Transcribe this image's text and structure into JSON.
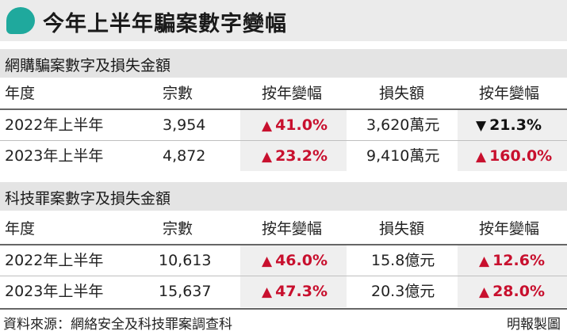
{
  "title": "今年上半年騙案數字變幅",
  "colors": {
    "accent": "#1fa99d",
    "up": "#c8102e",
    "down": "#111111"
  },
  "headers": {
    "year": "年度",
    "cases": "宗數",
    "yoy": "按年變幅",
    "loss": "損失額",
    "loss_yoy": "按年變幅"
  },
  "sections": [
    {
      "title": "網購騙案數字及損失金額",
      "rows": [
        {
          "year": "2022年上半年",
          "cases": "3,954",
          "cases_yoy": "41.0%",
          "cases_dir": "up",
          "loss": "3,620萬元",
          "loss_yoy": "21.3%",
          "loss_dir": "down"
        },
        {
          "year": "2023年上半年",
          "cases": "4,872",
          "cases_yoy": "23.2%",
          "cases_dir": "up",
          "loss": "9,410萬元",
          "loss_yoy": "160.0%",
          "loss_dir": "up"
        }
      ]
    },
    {
      "title": "科技罪案數字及損失金額",
      "rows": [
        {
          "year": "2022年上半年",
          "cases": "10,613",
          "cases_yoy": "46.0%",
          "cases_dir": "up",
          "loss": "15.8億元",
          "loss_yoy": "12.6%",
          "loss_dir": "up"
        },
        {
          "year": "2023年上半年",
          "cases": "15,637",
          "cases_yoy": "47.3%",
          "cases_dir": "up",
          "loss": "20.3億元",
          "loss_yoy": "28.0%",
          "loss_dir": "up"
        }
      ]
    }
  ],
  "footer": {
    "source": "資料來源：網絡安全及科技罪案調查科",
    "credit": "明報製圖"
  }
}
